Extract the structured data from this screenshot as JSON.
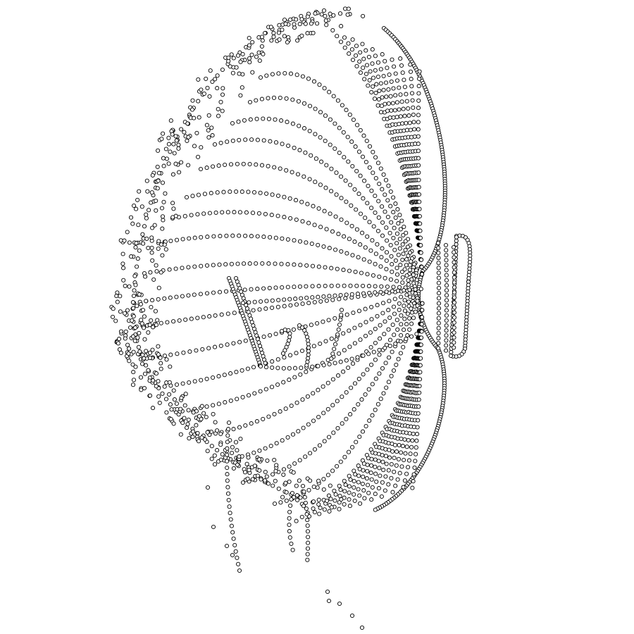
{
  "figure": {
    "description_visible_text": "",
    "background_color": "#ffffff",
    "point_stroke_color": "#000000",
    "point_fill_color": "#ffffff",
    "marker": "hollow-circle"
  }
}
